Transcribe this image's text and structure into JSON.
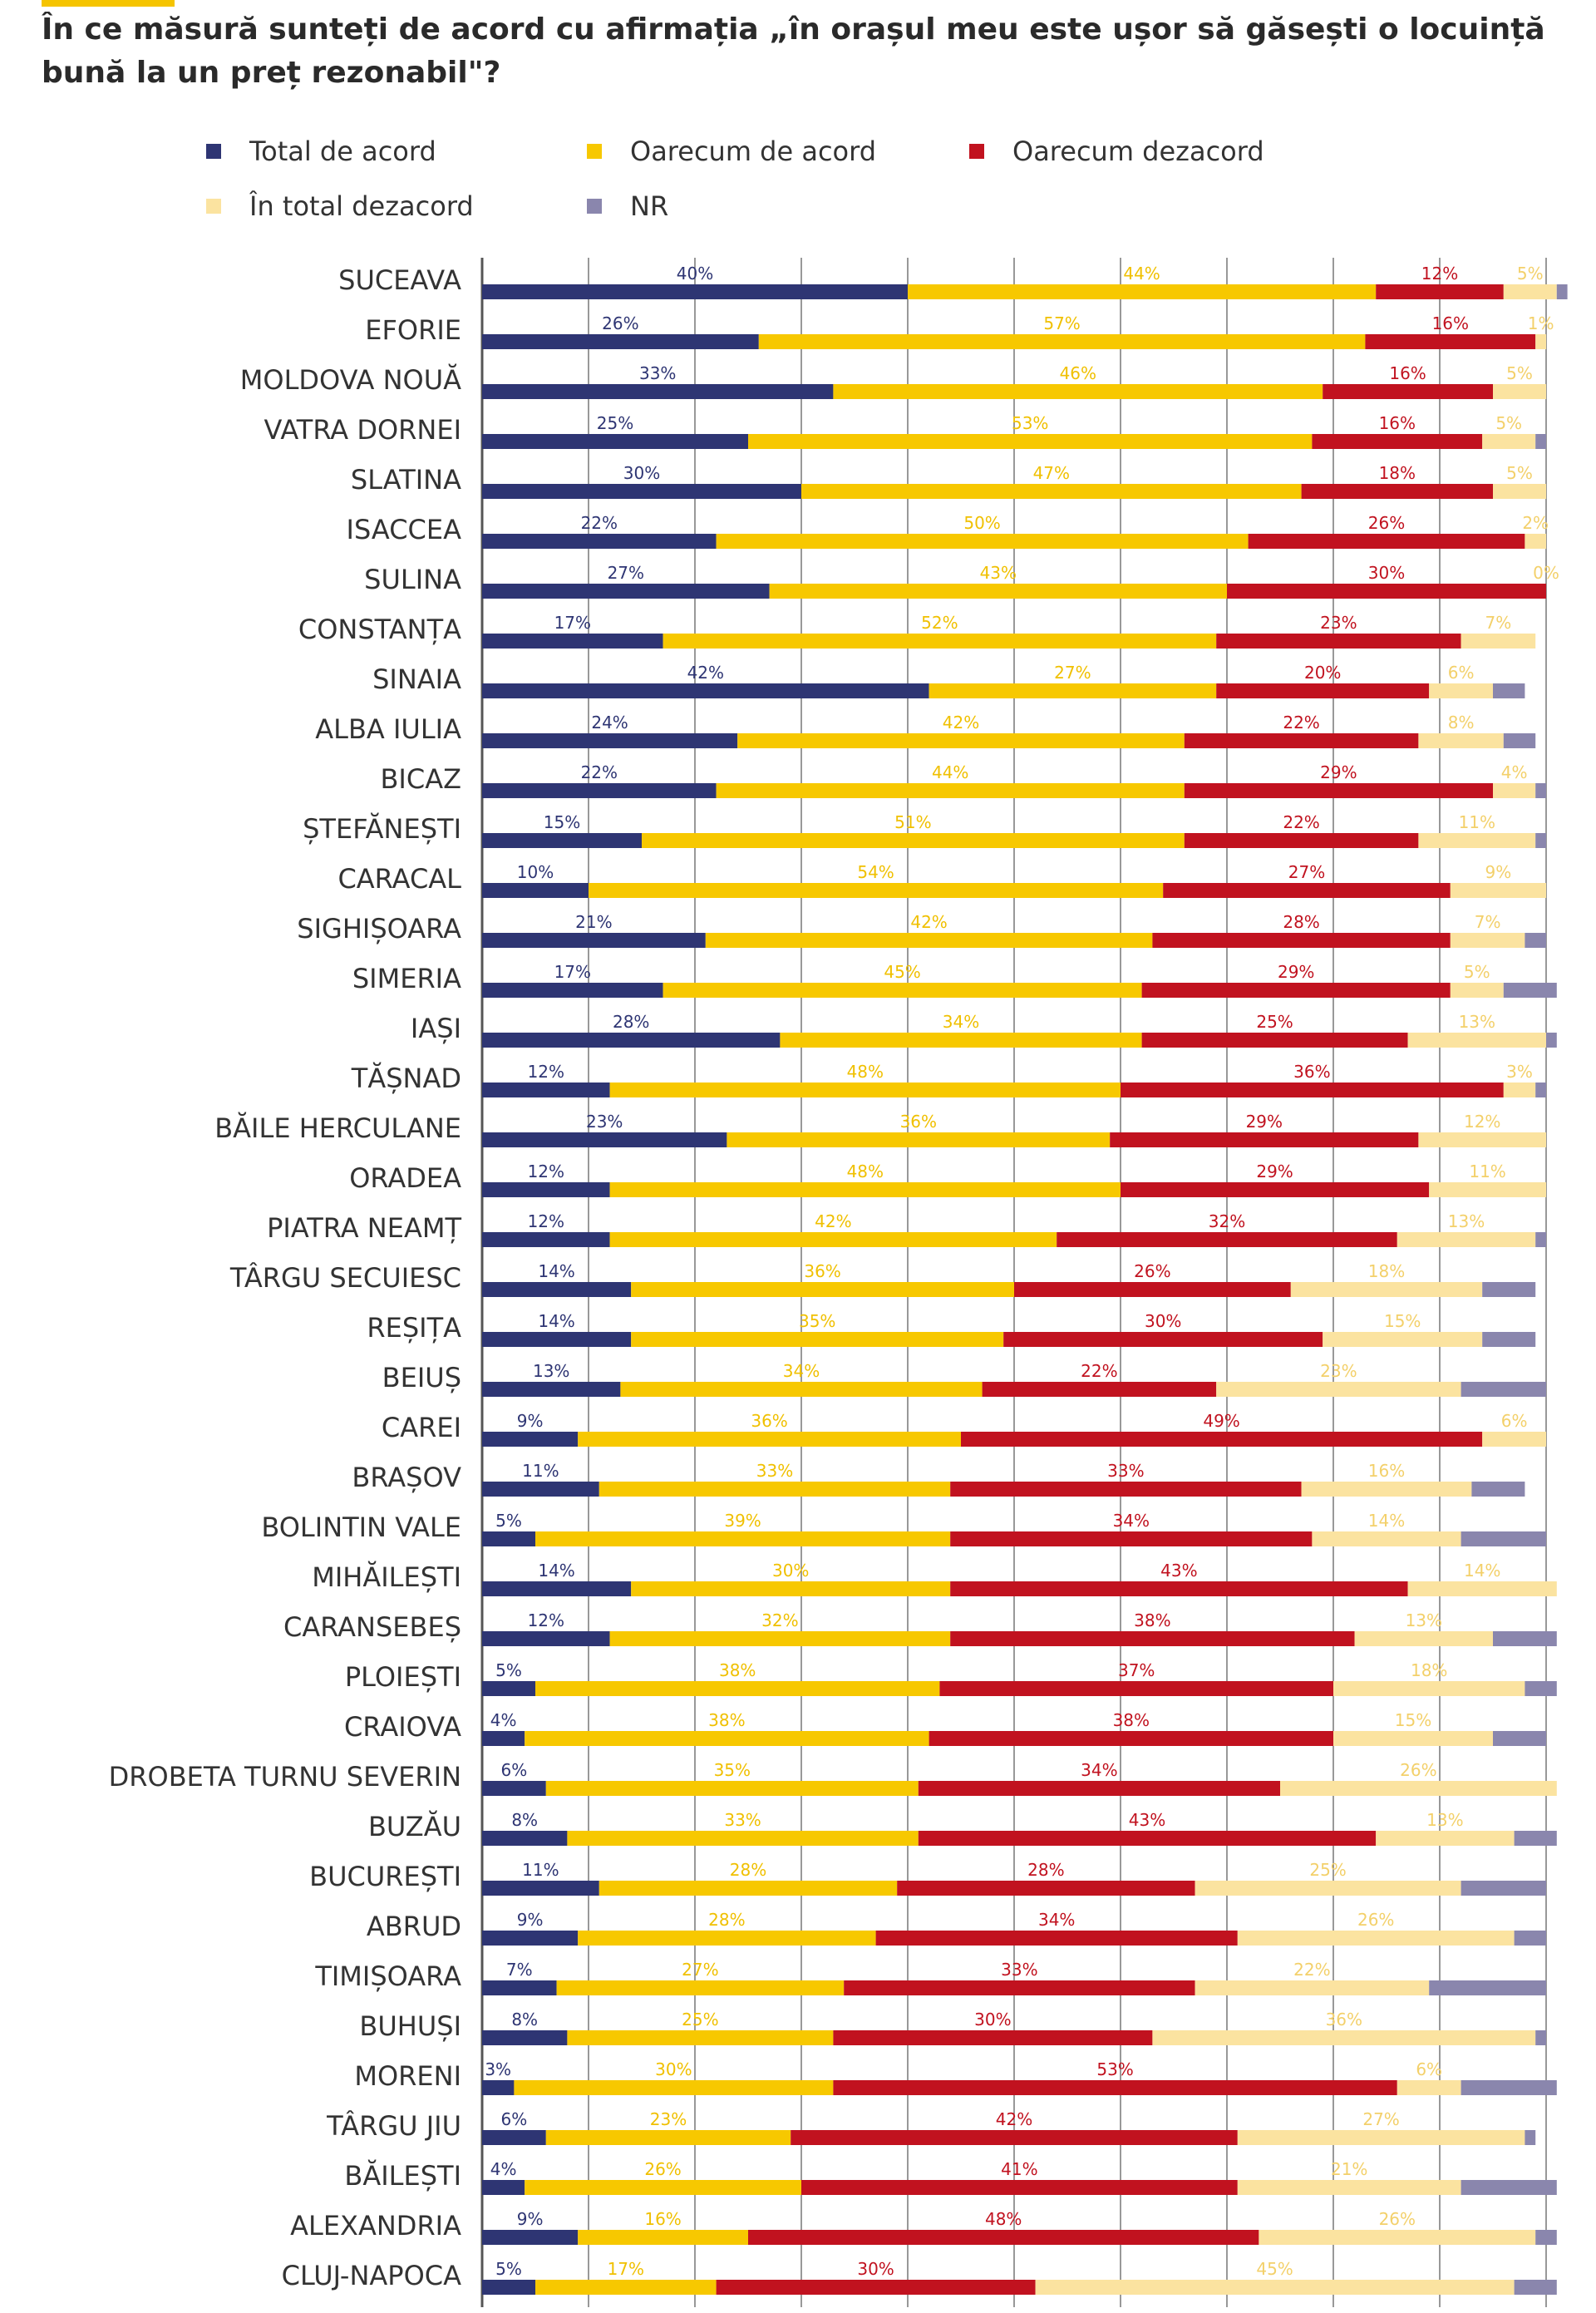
{
  "header": {
    "title": "În ce măsură sunteți de acord cu afirmația „în orașul meu este ușor să găsești o locuință bună la un preț rezonabil\"?"
  },
  "colors": {
    "total_acord": "#2e3573",
    "oarecum_acord": "#f7c800",
    "oarecum_dezacord": "#c1121f",
    "total_dezacord": "#fbe3a0",
    "nr": "#8a86ad",
    "grid": "#555555"
  },
  "chart_data": {
    "type": "bar",
    "orientation": "horizontal",
    "stacked": true,
    "title": "În ce măsură sunteți de acord cu afirmația „în orașul meu este ușor să găsești o locuință bună la un preț rezonabil\"?",
    "legend_position": "top",
    "grid": true,
    "xlim": [
      0,
      100
    ],
    "unit_suffix": "%",
    "categories": [
      "SUCEAVA",
      "EFORIE",
      "MOLDOVA NOUĂ",
      "VATRA DORNEI",
      "SLATINA",
      "ISACCEA",
      "SULINA",
      "CONSTANȚA",
      "SINAIA",
      "ALBA IULIA",
      "BICAZ",
      "ȘTEFĂNEȘTI",
      "CARACAL",
      "SIGHIȘOARA",
      "SIMERIA",
      "IAȘI",
      "TĂȘNAD",
      "BĂILE HERCULANE",
      "ORADEA",
      "PIATRA NEAMȚ",
      "TÂRGU SECUIESC",
      "REȘIȚA",
      "BEIUȘ",
      "CAREI",
      "BRAȘOV",
      "BOLINTIN VALE",
      "MIHĂILEȘTI",
      "CARANSEBEȘ",
      "PLOIEȘTI",
      "CRAIOVA",
      "DROBETA TURNU SEVERIN",
      "BUZĂU",
      "BUCUREȘTI",
      "ABRUD",
      "TIMIȘOARA",
      "BUHUȘI",
      "MORENI",
      "TÂRGU JIU",
      "BĂILEȘTI",
      "ALEXANDRIA",
      "CLUJ-NAPOCA"
    ],
    "series": [
      {
        "name": "Total de acord",
        "key": "total_acord",
        "values": [
          40,
          26,
          33,
          25,
          30,
          22,
          27,
          17,
          42,
          24,
          22,
          15,
          10,
          21,
          17,
          28,
          12,
          23,
          12,
          12,
          14,
          14,
          13,
          9,
          11,
          5,
          14,
          12,
          5,
          4,
          6,
          8,
          11,
          9,
          7,
          8,
          3,
          6,
          4,
          9,
          5
        ]
      },
      {
        "name": "Oarecum de acord",
        "key": "oarecum_acord",
        "values": [
          44,
          57,
          46,
          53,
          47,
          50,
          43,
          52,
          27,
          42,
          44,
          51,
          54,
          42,
          45,
          34,
          48,
          36,
          48,
          42,
          36,
          35,
          34,
          36,
          33,
          39,
          30,
          32,
          38,
          38,
          35,
          33,
          28,
          28,
          27,
          25,
          30,
          23,
          26,
          16,
          17
        ]
      },
      {
        "name": "Oarecum dezacord",
        "key": "oarecum_dezacord",
        "values": [
          12,
          16,
          16,
          16,
          18,
          26,
          30,
          23,
          20,
          22,
          29,
          22,
          27,
          28,
          29,
          25,
          36,
          29,
          29,
          32,
          26,
          30,
          22,
          49,
          33,
          34,
          43,
          38,
          37,
          38,
          34,
          43,
          28,
          34,
          33,
          30,
          53,
          42,
          41,
          48,
          30
        ]
      },
      {
        "name": "În total dezacord",
        "key": "total_dezacord",
        "values": [
          5,
          1,
          5,
          5,
          5,
          2,
          0,
          7,
          6,
          8,
          4,
          11,
          9,
          7,
          5,
          13,
          3,
          12,
          11,
          13,
          18,
          15,
          23,
          6,
          16,
          14,
          14,
          13,
          18,
          15,
          26,
          13,
          25,
          26,
          22,
          36,
          6,
          27,
          21,
          26,
          45
        ]
      },
      {
        "name": "NR",
        "key": "nr",
        "values": [
          1,
          0,
          0,
          1,
          0,
          0,
          0,
          0,
          3,
          3,
          1,
          1,
          0,
          2,
          5,
          1,
          1,
          0,
          0,
          1,
          5,
          5,
          8,
          0,
          5,
          8,
          0,
          6,
          3,
          5,
          0,
          4,
          8,
          3,
          11,
          1,
          9,
          1,
          9,
          2,
          4
        ]
      }
    ],
    "show_labels_for": [
      "total_acord",
      "oarecum_acord",
      "oarecum_dezacord",
      "total_dezacord"
    ]
  }
}
